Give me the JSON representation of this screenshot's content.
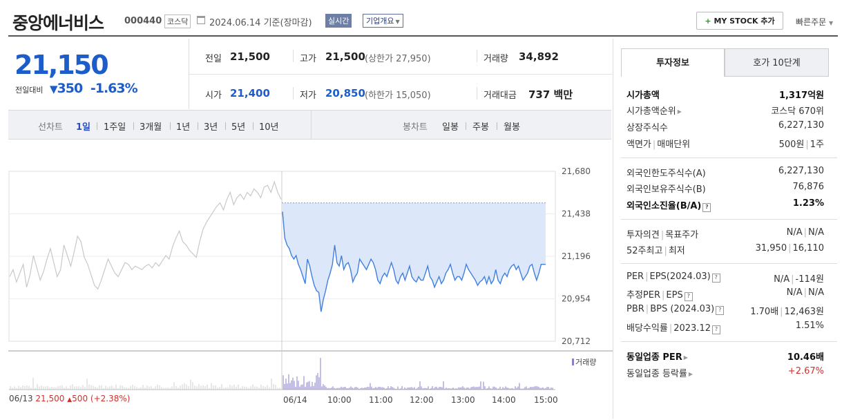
{
  "header": {
    "name": "중앙에너비스",
    "code": "000440",
    "market": "코스닥",
    "date": "2024.06.14",
    "status": "기준(장마감)",
    "live_label": "실시간",
    "overview_label": "기업개요",
    "mystock_label": "MY STOCK 추가",
    "quick_order_label": "빠른주문"
  },
  "quote": {
    "price": "21,150",
    "change_label": "전일대비",
    "change": "350",
    "change_pct": "-1.63%",
    "prev_label": "전일",
    "prev": "21,500",
    "high_label": "고가",
    "high": "21,500",
    "upper_limit": "(상한가 27,950)",
    "volume_label": "거래량",
    "volume": "34,892",
    "open_label": "시가",
    "open": "21,400",
    "low_label": "저가",
    "low": "20,850",
    "lower_limit": "(하한가 15,050)",
    "amount_label": "거래대금",
    "amount": "737 백만"
  },
  "chart_tabs": {
    "line_label": "선차트",
    "line_periods": [
      "1일",
      "1주일",
      "3개월",
      "1년",
      "3년",
      "5년",
      "10년"
    ],
    "candle_label": "봉차트",
    "candle_periods": [
      "일봉",
      "주봉",
      "월봉"
    ],
    "active": "1일"
  },
  "chart_data": {
    "type": "line",
    "yticks": [
      "21,680",
      "21,438",
      "21,196",
      "20,954",
      "20,712"
    ],
    "ylim": [
      20712,
      21680
    ],
    "prev_close": 21500,
    "xticks": [
      "06/13",
      "06/14",
      "10:00",
      "11:00",
      "12:00",
      "13:00",
      "14:00",
      "15:00"
    ],
    "prev_day_note": {
      "date": "06/13",
      "price": "21,500",
      "change": "500",
      "pct": "(+2.38%)"
    },
    "volume_legend": "거래량",
    "colors": {
      "prev_day": "#c8c8c8",
      "today": "#3f7fe0",
      "fill": "#dce8fa",
      "volume_today": "#8a7fc9",
      "volume_prev": "#cfcfcf"
    },
    "series": [
      {
        "values": [
          21080,
          21120,
          21050,
          21100,
          21150,
          21020,
          21090,
          21200,
          21130,
          21060,
          21110,
          21180,
          21240,
          21160,
          21080,
          21120,
          21260,
          21200,
          21140,
          21220,
          21310,
          21280,
          21190,
          21150,
          21090,
          21030,
          21010,
          21060,
          21120,
          21180,
          21140,
          21100,
          21080,
          21120,
          21160,
          21150,
          21120,
          21140,
          21130,
          21120,
          21140,
          21150,
          21130,
          21160,
          21140,
          21170,
          21200,
          21180,
          21250,
          21300,
          21340,
          21280,
          21260,
          21230,
          21210,
          21190,
          21280,
          21350,
          21390,
          21420,
          21450,
          21480,
          21500,
          21460,
          21520,
          21560,
          21490,
          21530,
          21550,
          21520,
          21560,
          21540,
          21580,
          21560,
          21530,
          21590,
          21600,
          21560,
          21620,
          21560,
          21520
        ]
      },
      {
        "values": [
          21450,
          21300,
          21260,
          21240,
          21200,
          21180,
          21200,
          21150,
          21120,
          21080,
          21040,
          21180,
          21140,
          21080,
          21030,
          21000,
          20990,
          20880,
          20950,
          21000,
          21060,
          21100,
          21150,
          21260,
          21160,
          21140,
          21200,
          21120,
          21150,
          21160,
          21120,
          21050,
          21080,
          21100,
          21180,
          21160,
          21140,
          21120,
          21150,
          21180,
          21160,
          21120,
          21060,
          21040,
          21080,
          21100,
          21080,
          21120,
          21160,
          21120,
          21060,
          21040,
          21080,
          21100,
          21060,
          21100,
          21140,
          21080,
          21060,
          21050,
          21080,
          21060,
          21060,
          21100,
          21140,
          21080,
          21060,
          21020,
          21050,
          21080,
          21040,
          21060,
          21100,
          21120,
          21150,
          21100,
          21060,
          21080,
          21080,
          21060,
          21100,
          21150,
          21120,
          21100,
          21080,
          21060,
          21030,
          21050,
          21060,
          21080,
          21040,
          21080,
          21040,
          21060,
          21120,
          21060,
          21040,
          21080,
          21100,
          21080,
          21120,
          21140,
          21150,
          21120,
          21140,
          21100,
          21060,
          21080,
          21100,
          21140,
          21150,
          21100,
          21060,
          21100,
          21150,
          21150,
          21150
        ]
      }
    ]
  },
  "side": {
    "tab_invest": "투자정보",
    "tab_hoga": "호가 10단계",
    "market_cap_label": "시가총액",
    "market_cap": "1,317억원",
    "cap_rank_label": "시가총액순위",
    "cap_rank": "코스닥 670위",
    "shares_label": "상장주식수",
    "shares": "6,227,130",
    "par_label": "액면가",
    "trade_unit_label": "매매단위",
    "par": "500원",
    "trade_unit": "1주",
    "foreign_limit_label": "외국인한도주식수(A)",
    "foreign_limit": "6,227,130",
    "foreign_hold_label": "외국인보유주식수(B)",
    "foreign_hold": "76,876",
    "foreign_ratio_label": "외국인소진율(B/A)",
    "foreign_ratio": "1.23%",
    "opinion_label": "투자의견",
    "target_label": "목표주가",
    "opinion": "N/A",
    "target": "N/A",
    "w52_high_label": "52주최고",
    "w52_low_label": "최저",
    "w52_high": "31,950",
    "w52_low": "16,110",
    "per_label": "PER",
    "eps_label": "EPS(2024.03)",
    "per": "N/A",
    "eps": "-114원",
    "est_per_label": "추정PER",
    "est_eps_label": "EPS",
    "est_per": "N/A",
    "est_eps": "N/A",
    "pbr_label": "PBR",
    "bps_label": "BPS (2024.03)",
    "pbr": "1.70배",
    "bps": "12,463원",
    "div_label": "배당수익률",
    "div_date": "2023.12",
    "div": "1.51%",
    "sector_per_label": "동일업종 PER",
    "sector_per": "10.46배",
    "sector_chg_label": "동일업종 등락률",
    "sector_chg": "+2.67%"
  }
}
